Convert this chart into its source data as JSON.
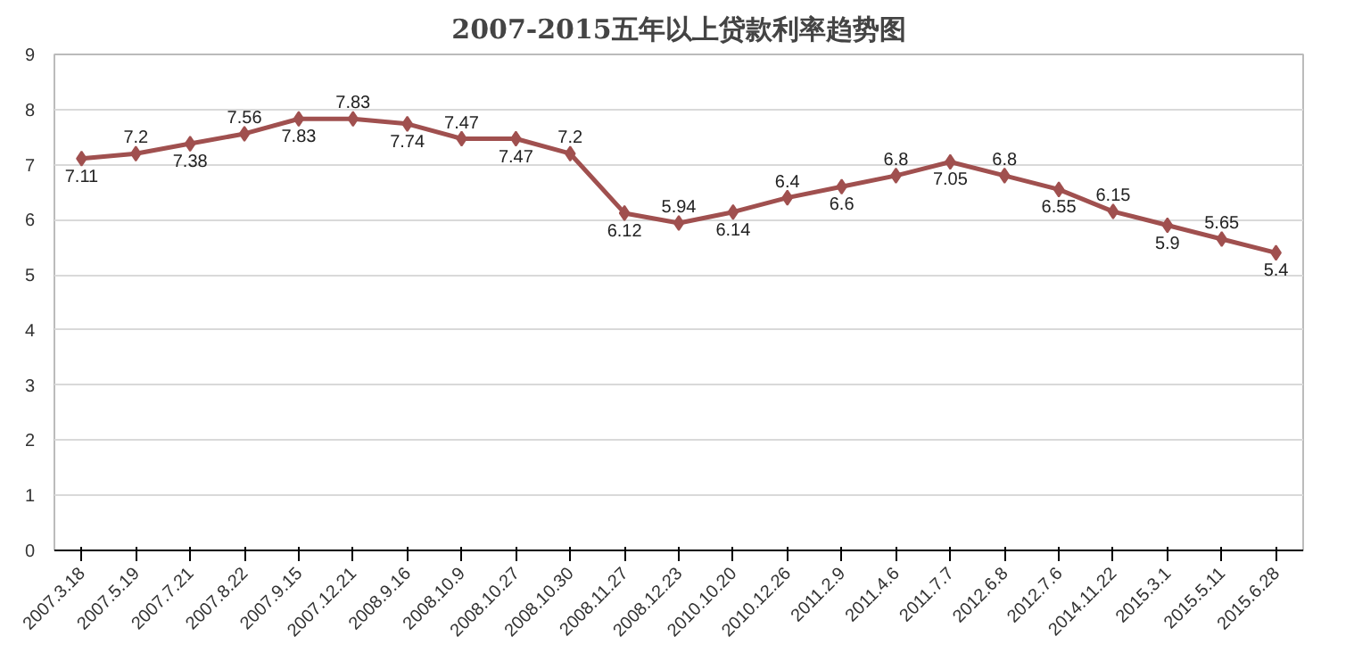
{
  "chart_data": {
    "type": "line",
    "title": "2007-2015五年以上贷款利率趋势图",
    "categories": [
      "2007.3.18",
      "2007.5.19",
      "2007.7.21",
      "2007.8.22",
      "2007.9.15",
      "2007.12.21",
      "2008.9.16",
      "2008.10.9",
      "2008.10.27",
      "2008.10.30",
      "2008.11.27",
      "2008.12.23",
      "2010.10.20",
      "2010.12.26",
      "2011.2.9",
      "2011.4.6",
      "2011.7.7",
      "2012.6.8",
      "2012.7.6",
      "2014.11.22",
      "2015.3.1",
      "2015.5.11",
      "2015.6.28"
    ],
    "series": [
      {
        "color": "#a0504f",
        "values": [
          7.11,
          7.2,
          7.38,
          7.56,
          7.83,
          7.83,
          7.74,
          7.47,
          7.47,
          7.2,
          6.12,
          5.94,
          6.14,
          6.4,
          6.6,
          6.8,
          7.05,
          6.8,
          6.55,
          6.15,
          5.9,
          5.65,
          5.4
        ]
      }
    ],
    "ylim": [
      0,
      9
    ],
    "yticks": [
      0,
      1,
      2,
      3,
      4,
      5,
      6,
      7,
      8,
      9
    ],
    "grid": "y",
    "marker": "diamond",
    "line_style": "solid",
    "data_labels": true
  }
}
